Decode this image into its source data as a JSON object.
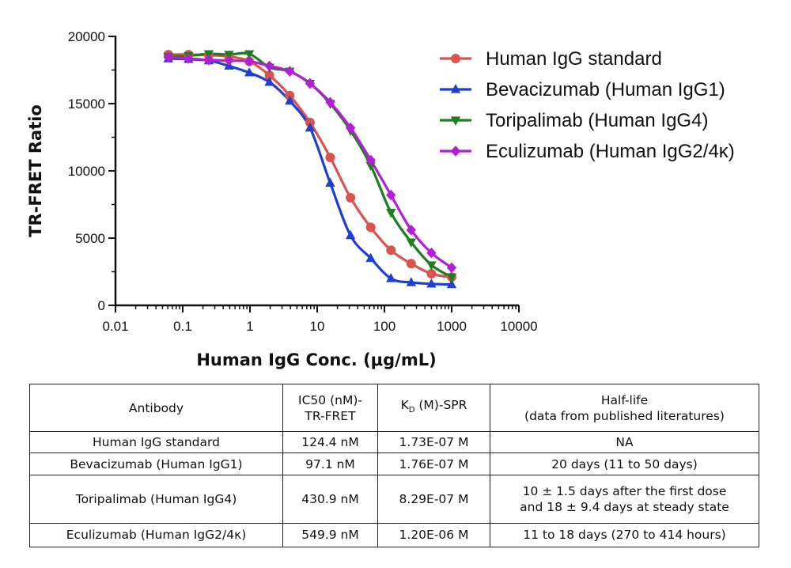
{
  "chart_data": {
    "type": "line",
    "xscale": "log",
    "xlim": [
      0.01,
      10000
    ],
    "ylim": [
      0,
      20000
    ],
    "x_ticks": [
      "0.01",
      "0.1",
      "1",
      "10",
      "100",
      "1000",
      "10000"
    ],
    "y_ticks": [
      "0",
      "5000",
      "10000",
      "15000",
      "20000"
    ],
    "xlabel": "Human IgG Conc. (μg/mL)",
    "ylabel": "TR-FRET Ratio",
    "legend_position": "top-right",
    "series": [
      {
        "name": "Human IgG standard",
        "color": "#d9534f",
        "marker": "circle",
        "x": [
          0.061,
          0.122,
          0.244,
          0.488,
          0.977,
          1.95,
          3.91,
          7.81,
          15.6,
          31.3,
          62.5,
          125,
          250,
          500,
          1000
        ],
        "y": [
          18650,
          18650,
          18600,
          18500,
          18150,
          17100,
          15600,
          13600,
          11000,
          8000,
          5800,
          4100,
          3100,
          2350,
          2100
        ]
      },
      {
        "name": "Bevacizumab (Human IgG1)",
        "color": "#1f3fd1",
        "marker": "triangle-up",
        "x": [
          0.061,
          0.122,
          0.244,
          0.488,
          0.977,
          1.95,
          3.91,
          7.81,
          15.6,
          31.3,
          62.5,
          125,
          250,
          500,
          1000
        ],
        "y": [
          18350,
          18300,
          18200,
          17800,
          17300,
          16600,
          15200,
          13200,
          9100,
          5200,
          3500,
          2000,
          1700,
          1600,
          1550
        ]
      },
      {
        "name": "Toripalimab (Human IgG4)",
        "color": "#1e7d1e",
        "marker": "triangle-down",
        "x": [
          0.061,
          0.122,
          0.244,
          0.488,
          0.977,
          1.95,
          3.91,
          7.81,
          15.6,
          31.3,
          62.5,
          125,
          250,
          500,
          1000
        ],
        "y": [
          18500,
          18550,
          18700,
          18650,
          18700,
          17700,
          17400,
          16500,
          15000,
          13000,
          10400,
          6900,
          4700,
          3000,
          2100
        ]
      },
      {
        "name": "Eculizumab (Human IgG2/4κ)",
        "color": "#b21fd6",
        "marker": "diamond",
        "x": [
          0.061,
          0.122,
          0.244,
          0.488,
          0.977,
          1.95,
          3.91,
          7.81,
          15.6,
          31.3,
          62.5,
          125,
          250,
          500,
          1000
        ],
        "y": [
          18450,
          18350,
          18250,
          18200,
          18150,
          17800,
          17400,
          16500,
          15100,
          13200,
          10800,
          8200,
          5600,
          3900,
          2800
        ]
      }
    ]
  },
  "table": {
    "header": {
      "antibody": "Antibody",
      "ic50_line1": "IC50 (nM)-",
      "ic50_line2": "TR-FRET",
      "kd_main": "K",
      "kd_sub": "D",
      "kd_rest": " (M)-SPR",
      "halflife_line1": "Half-life",
      "halflife_line2": "(data from published literatures)"
    },
    "rows": [
      {
        "antibody": "Human IgG standard",
        "ic50": "124.4 nM",
        "kd": "1.73E-07 M",
        "halflife_line1": "NA",
        "halflife_line2": ""
      },
      {
        "antibody": "Bevacizumab (Human IgG1)",
        "ic50": "97.1 nM",
        "kd": "1.76E-07 M",
        "halflife_line1": "20 days (11 to 50 days)",
        "halflife_line2": ""
      },
      {
        "antibody": "Toripalimab (Human IgG4)",
        "ic50": "430.9 nM",
        "kd": "8.29E-07 M",
        "halflife_line1": "10 ± 1.5 days after the first dose",
        "halflife_line2": "and 18 ± 9.4 days at steady state"
      },
      {
        "antibody": "Eculizumab (Human IgG2/4κ)",
        "ic50": "549.9 nM",
        "kd": "1.20E-06 M",
        "halflife_line1": "11 to 18 days (270 to 414 hours)",
        "halflife_line2": ""
      }
    ]
  }
}
